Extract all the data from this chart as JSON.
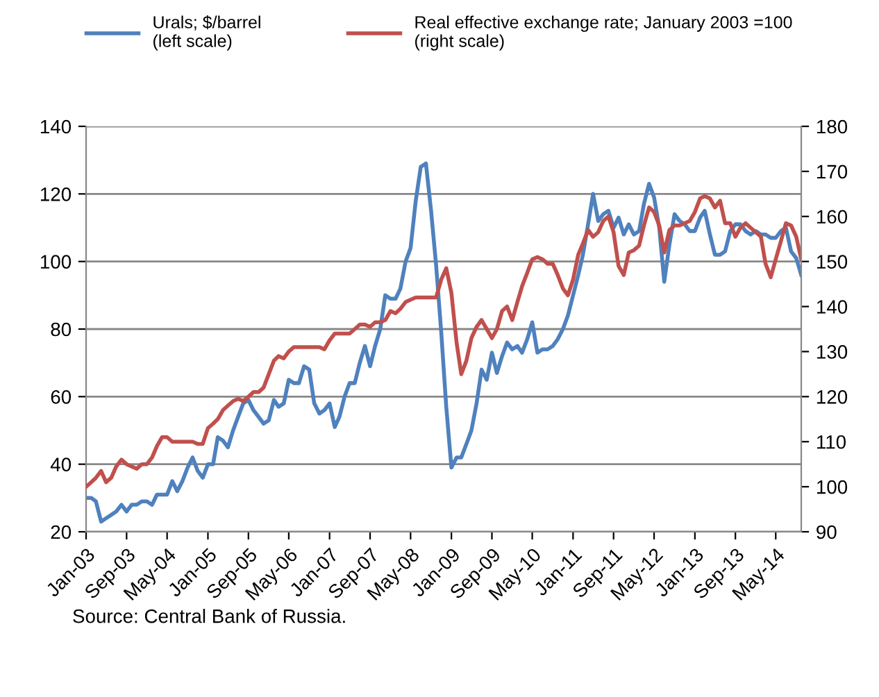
{
  "chart_data": {
    "type": "line",
    "x": [
      "2003-01",
      "2003-02",
      "2003-03",
      "2003-04",
      "2003-05",
      "2003-06",
      "2003-07",
      "2003-08",
      "2003-09",
      "2003-10",
      "2003-11",
      "2003-12",
      "2004-01",
      "2004-02",
      "2004-03",
      "2004-04",
      "2004-05",
      "2004-06",
      "2004-07",
      "2004-08",
      "2004-09",
      "2004-10",
      "2004-11",
      "2004-12",
      "2005-01",
      "2005-02",
      "2005-03",
      "2005-04",
      "2005-05",
      "2005-06",
      "2005-07",
      "2005-08",
      "2005-09",
      "2005-10",
      "2005-11",
      "2005-12",
      "2006-01",
      "2006-02",
      "2006-03",
      "2006-04",
      "2006-05",
      "2006-06",
      "2006-07",
      "2006-08",
      "2006-09",
      "2006-10",
      "2006-11",
      "2006-12",
      "2007-01",
      "2007-02",
      "2007-03",
      "2007-04",
      "2007-05",
      "2007-06",
      "2007-07",
      "2007-08",
      "2007-09",
      "2007-10",
      "2007-11",
      "2007-12",
      "2008-01",
      "2008-02",
      "2008-03",
      "2008-04",
      "2008-05",
      "2008-06",
      "2008-07",
      "2008-08",
      "2008-09",
      "2008-10",
      "2008-11",
      "2008-12",
      "2009-01",
      "2009-02",
      "2009-03",
      "2009-04",
      "2009-05",
      "2009-06",
      "2009-07",
      "2009-08",
      "2009-09",
      "2009-10",
      "2009-11",
      "2009-12",
      "2010-01",
      "2010-02",
      "2010-03",
      "2010-04",
      "2010-05",
      "2010-06",
      "2010-07",
      "2010-08",
      "2010-09",
      "2010-10",
      "2010-11",
      "2010-12",
      "2011-01",
      "2011-02",
      "2011-03",
      "2011-04",
      "2011-05",
      "2011-06",
      "2011-07",
      "2011-08",
      "2011-09",
      "2011-10",
      "2011-11",
      "2011-12",
      "2012-01",
      "2012-02",
      "2012-03",
      "2012-04",
      "2012-05",
      "2012-06",
      "2012-07",
      "2012-08",
      "2012-09",
      "2012-10",
      "2012-11",
      "2012-12",
      "2013-01",
      "2013-02",
      "2013-03",
      "2013-04",
      "2013-05",
      "2013-06",
      "2013-07",
      "2013-08",
      "2013-09",
      "2013-10",
      "2013-11",
      "2013-12",
      "2014-01",
      "2014-02",
      "2014-03",
      "2014-04",
      "2014-05",
      "2014-06",
      "2014-07",
      "2014-08",
      "2014-09",
      "2014-10"
    ],
    "series": [
      {
        "name": "Urals; $/barrel\n(left scale)",
        "color": "#4f81bd",
        "values": [
          30,
          30,
          29,
          23,
          24,
          25,
          26,
          28,
          26,
          28,
          28,
          29,
          29,
          28,
          31,
          31,
          31,
          35,
          32,
          35,
          39,
          42,
          38,
          36,
          40,
          40,
          48,
          47,
          45,
          50,
          54,
          58,
          59,
          56,
          54,
          52,
          53,
          59,
          57,
          58,
          65,
          64,
          64,
          69,
          68,
          58,
          55,
          56,
          58,
          51,
          54,
          60,
          64,
          64,
          70,
          75,
          69,
          75,
          80,
          90,
          89,
          89,
          92,
          100,
          104,
          118,
          128,
          129,
          115,
          99,
          79,
          57,
          39,
          42,
          42,
          46,
          50,
          58,
          68,
          65,
          73,
          67,
          72,
          76,
          74,
          75,
          73,
          77,
          82,
          73,
          74,
          74,
          75,
          77,
          80,
          84,
          90,
          96,
          102,
          111,
          120,
          112,
          114,
          115,
          110,
          113,
          108,
          111,
          108,
          109,
          117,
          123,
          119,
          110,
          94,
          105,
          114,
          112,
          111,
          109,
          109,
          113,
          115,
          108,
          102,
          102,
          103,
          109,
          111,
          111,
          109,
          108,
          109,
          108,
          108,
          107,
          107,
          109,
          110,
          103,
          101,
          96
        ]
      },
      {
        "name": "Real effective exchange rate; January 2003 =100\n(right scale)",
        "color": "#c0504d",
        "axis": "y2",
        "values": [
          100,
          101,
          102,
          103.5,
          101,
          102,
          104.5,
          106,
          105,
          104.5,
          104,
          105,
          105,
          106.5,
          109,
          111,
          111,
          110,
          110,
          110,
          110,
          110,
          109.5,
          109.5,
          113,
          114,
          115,
          117,
          118,
          119,
          119.5,
          119,
          120,
          121,
          121,
          122,
          125,
          128,
          129,
          128.5,
          130,
          131,
          131,
          131,
          131,
          131,
          131,
          130.5,
          132.5,
          134,
          134,
          134,
          134,
          135,
          136,
          136,
          135.5,
          136.5,
          136.5,
          137,
          139,
          138.5,
          139.5,
          141,
          141.5,
          142,
          142,
          142,
          142,
          142,
          146,
          148.5,
          143,
          132,
          125,
          128,
          133,
          135.5,
          137,
          135,
          133,
          135,
          139,
          140,
          137,
          141,
          144.5,
          147.5,
          150.5,
          151,
          150.5,
          149.5,
          149.5,
          147,
          144,
          142.5,
          146,
          151.5,
          154,
          157,
          155.5,
          156.5,
          159,
          160,
          156.5,
          149,
          147,
          152,
          152.5,
          153.5,
          158,
          162,
          161,
          158,
          152,
          157,
          158,
          158,
          158.5,
          159,
          161,
          164,
          164.5,
          164,
          162,
          163.5,
          158.5,
          158.5,
          155.5,
          157.5,
          158.5,
          157.5,
          156.5,
          155.5,
          149.5,
          146.5,
          150.5,
          154.5,
          158.5,
          158,
          155.5,
          150.5
        ]
      }
    ],
    "xlim": [
      "2003-01",
      "2014-10"
    ],
    "xticks": [
      {
        "value": "2003-01",
        "label": "Jan-03"
      },
      {
        "value": "2003-09",
        "label": "Sep-03"
      },
      {
        "value": "2004-05",
        "label": "May-04"
      },
      {
        "value": "2005-01",
        "label": "Jan-05"
      },
      {
        "value": "2005-09",
        "label": "Sep-05"
      },
      {
        "value": "2006-05",
        "label": "May-06"
      },
      {
        "value": "2007-01",
        "label": "Jan-07"
      },
      {
        "value": "2007-09",
        "label": "Sep-07"
      },
      {
        "value": "2008-05",
        "label": "May-08"
      },
      {
        "value": "2009-01",
        "label": "Jan-09"
      },
      {
        "value": "2009-09",
        "label": "Sep-09"
      },
      {
        "value": "2010-05",
        "label": "May-10"
      },
      {
        "value": "2011-01",
        "label": "Jan-11"
      },
      {
        "value": "2011-09",
        "label": "Sep-11"
      },
      {
        "value": "2012-05",
        "label": "May-12"
      },
      {
        "value": "2013-01",
        "label": "Jan-13"
      },
      {
        "value": "2013-09",
        "label": "Sep-13"
      },
      {
        "value": "2014-05",
        "label": "May-14"
      }
    ],
    "ylim": [
      20,
      140
    ],
    "yticks": [
      20,
      40,
      60,
      80,
      100,
      120,
      140
    ],
    "y2lim": [
      90,
      180
    ],
    "y2ticks": [
      90,
      100,
      110,
      120,
      130,
      140,
      150,
      160,
      170,
      180
    ],
    "grid": "y",
    "legend": "top",
    "annotations": [
      "Source: Central Bank of Russia."
    ]
  }
}
